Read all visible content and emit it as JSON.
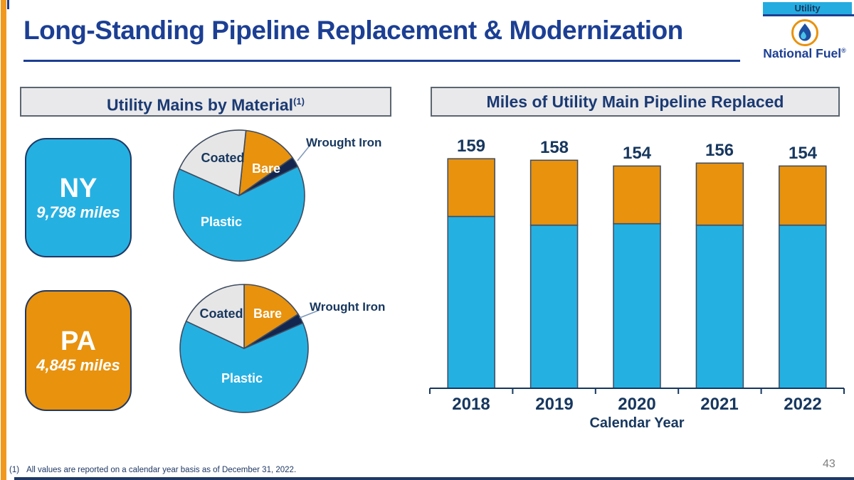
{
  "slide": {
    "title": "Long-Standing Pipeline Replacement & Modernization",
    "tab_label": "Utility",
    "brand": "National Fuel",
    "brand_registered_mark": "®",
    "footnote_marker": "(1)",
    "footnote_text": "All values are reported on a calendar year basis as of December 31, 2022.",
    "page_number": "43"
  },
  "left_panel": {
    "header": "Utility Mains by Material",
    "header_superscript": "(1)",
    "ny_box": {
      "state": "NY",
      "miles": "9,798 miles"
    },
    "pa_box": {
      "state": "PA",
      "miles": "4,845 miles"
    }
  },
  "right_panel": {
    "header": "Miles of Utility Main Pipeline Replaced"
  },
  "colors": {
    "title_blue": "#1C3F94",
    "text_navy": "#17375E",
    "cyan": "#25B0E2",
    "orange": "#E8920E",
    "edge_orange": "#F0991E",
    "slice_gray": "#E7E6E6",
    "wrought_iron_navy": "#12264F",
    "header_bg": "#E9E9EB",
    "header_border": "#5B6670",
    "page_number_gray": "#7F7F7F"
  },
  "chart_data": [
    {
      "type": "pie",
      "title": "NY Utility Mains by Material",
      "labels": [
        "Bare",
        "Wrought Iron",
        "Plastic",
        "Coated"
      ],
      "values": [
        13.5,
        2.5,
        64,
        20
      ],
      "colors": [
        "#E8920E",
        "#12264F",
        "#25B0E2",
        "#E7E6E6"
      ],
      "start_angle_deg": 6,
      "note": "slice percentages estimated from chart angles; no data labels shown"
    },
    {
      "type": "pie",
      "title": "PA Utility Mains by Material",
      "labels": [
        "Bare",
        "Wrought Iron",
        "Plastic",
        "Coated"
      ],
      "values": [
        16,
        2.5,
        63.5,
        18
      ],
      "colors": [
        "#E8920E",
        "#12264F",
        "#25B0E2",
        "#E7E6E6"
      ],
      "start_angle_deg": 0,
      "note": "slice percentages estimated from chart angles; no data labels shown"
    },
    {
      "type": "bar",
      "stacked": true,
      "title": "Miles of Utility Main Pipeline Replaced",
      "categories": [
        "2018",
        "2019",
        "2020",
        "2021",
        "2022"
      ],
      "series": [
        {
          "name": "blue segment",
          "color": "#25B0E2",
          "values": [
            119,
            113,
            114,
            113,
            113
          ]
        },
        {
          "name": "orange segment",
          "color": "#E8920E",
          "values": [
            40,
            45,
            40,
            43,
            41
          ]
        }
      ],
      "totals": [
        159,
        158,
        154,
        156,
        154
      ],
      "xlabel": "Calendar Year",
      "ylim": [
        0,
        170
      ],
      "legend": "none",
      "gridlines": false,
      "note": "segment split estimated from chart; only totals are labeled"
    }
  ]
}
